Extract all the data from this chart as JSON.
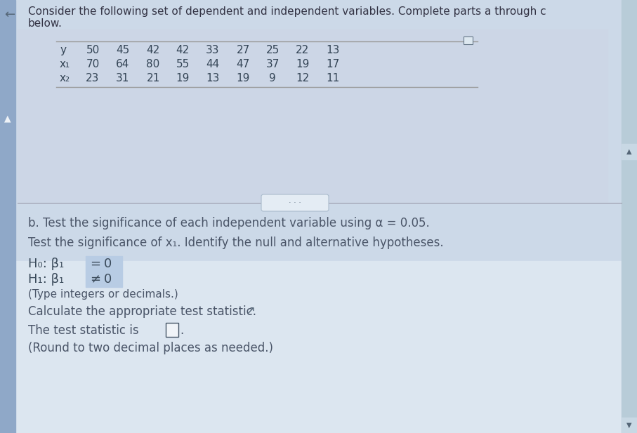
{
  "title_line1": "Consider the following set of dependent and independent variables. Complete parts a through c",
  "title_line2": "below.",
  "table": {
    "row_labels": [
      "y",
      "x₁",
      "x₂"
    ],
    "values": [
      [
        50,
        45,
        42,
        42,
        33,
        27,
        25,
        22,
        13
      ],
      [
        70,
        64,
        80,
        55,
        44,
        47,
        37,
        19,
        17
      ],
      [
        23,
        31,
        21,
        19,
        13,
        19,
        9,
        12,
        11
      ]
    ]
  },
  "part_b_line": "b. Test the significance of each independent variable using α = 0.05.",
  "test_line": "Test the significance of x₁. Identify the null and alternative hypotheses.",
  "H0_text": "H₀: β₁",
  "H0_eq": " = ",
  "H0_val": "0",
  "H1_text": "H₁: β₁",
  "H1_eq": " ≠ ",
  "H1_val": "0",
  "type_note": "(Type integers or decimals.)",
  "calc_line": "Calculate the appropriate test statistic.",
  "stat_line1": "The test statistic is",
  "stat_line2": "(Round to two decimal places as needed.)",
  "bg_top": "#ccd9e8",
  "bg_bottom": "#dce6f0",
  "text_color": "#4a5568",
  "table_line_color": "#999999",
  "highlight_color": "#b8cce4",
  "scrollbar_color": "#b0c4d8"
}
